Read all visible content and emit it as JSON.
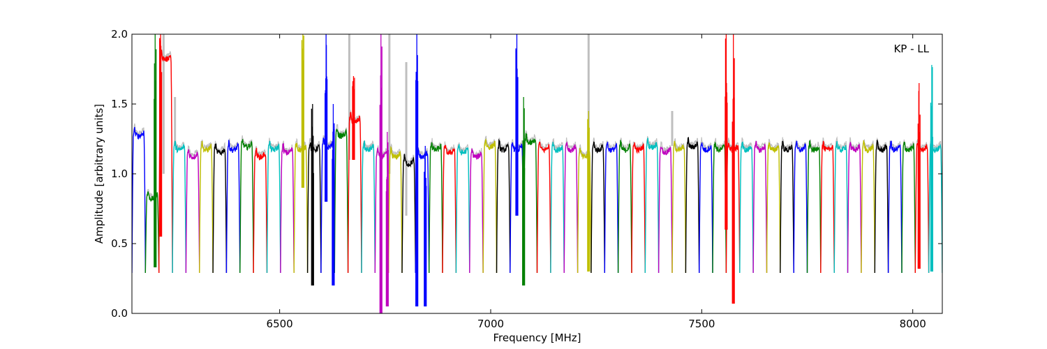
{
  "chart_data": {
    "type": "line",
    "title": "",
    "xlabel": "Frequency [MHz]",
    "ylabel": "Amplitude [arbitrary units]",
    "annotation": "KP - LL",
    "xlim": [
      6150,
      8070
    ],
    "ylim": [
      0.0,
      2.0
    ],
    "xticks": [
      6500,
      7000,
      7500,
      8000
    ],
    "yticks": [
      0.0,
      0.5,
      1.0,
      1.5,
      2.0
    ],
    "ytick_labels": [
      "0.0",
      "0.5",
      "1.0",
      "1.5",
      "2.0"
    ],
    "grid": false,
    "legend": "none",
    "channel_width_mhz": 32,
    "first_channel_start_mhz": 6150,
    "channel_colors": [
      "#0000ff",
      "#008000",
      "#ff0000",
      "#00bfbf",
      "#bf00bf",
      "#bfbf00",
      "#000000"
    ],
    "reference_color": "#bfbfbf",
    "channel_levels": [
      1.3,
      0.85,
      1.85,
      1.2,
      1.15,
      1.2,
      1.18,
      1.2,
      1.22,
      1.15,
      1.2,
      1.18,
      1.2,
      1.2,
      1.22,
      1.3,
      1.4,
      1.2,
      1.15,
      1.15,
      1.1,
      1.15,
      1.2,
      1.18,
      1.18,
      1.15,
      1.22,
      1.2,
      1.2,
      1.25,
      1.2,
      1.2,
      1.2,
      1.15,
      1.2,
      1.2,
      1.2,
      1.2,
      1.22,
      1.18,
      1.2,
      1.22,
      1.2,
      1.2,
      1.2,
      1.2,
      1.2,
      1.2,
      1.2,
      1.2,
      1.2,
      1.2,
      1.2,
      1.2,
      1.2,
      1.2,
      1.2,
      1.2,
      1.2,
      1.2,
      1.2,
      1.2,
      1.2,
      1.2,
      1.2,
      1.2,
      1.15,
      1.2,
      1.2,
      1.2,
      1.2,
      1.2,
      1.2,
      1.2,
      1.2,
      1.2,
      1.2,
      1.2,
      1.2,
      1.2,
      1.2,
      1.2,
      1.2,
      1.2,
      1.2,
      1.2,
      1.2,
      1.2,
      1.2,
      1.2,
      1.2,
      1.2,
      1.2,
      1.2,
      1.2,
      1.2,
      1.2,
      1.2,
      1.2,
      1.2
    ],
    "minimum_level": 0.29,
    "spikes": [
      {
        "x": 6205,
        "y_min": 0.33,
        "y_max": 2.0
      },
      {
        "x": 6218,
        "y_min": 0.55,
        "y_max": 2.0
      },
      {
        "x": 6555,
        "y_min": 0.9,
        "y_max": 2.0
      },
      {
        "x": 6578,
        "y_min": 0.2,
        "y_max": 1.5
      },
      {
        "x": 6610,
        "y_min": 0.8,
        "y_max": 2.0
      },
      {
        "x": 6627,
        "y_min": 0.2,
        "y_max": 1.5
      },
      {
        "x": 6675,
        "y_min": 1.1,
        "y_max": 1.7
      },
      {
        "x": 6740,
        "y_min": 0.0,
        "y_max": 2.0
      },
      {
        "x": 6755,
        "y_min": 0.05,
        "y_max": 1.3
      },
      {
        "x": 6825,
        "y_min": 0.05,
        "y_max": 2.0
      },
      {
        "x": 6845,
        "y_min": 0.05,
        "y_max": 1.2
      },
      {
        "x": 7062,
        "y_min": 0.7,
        "y_max": 2.0
      },
      {
        "x": 7078,
        "y_min": 0.2,
        "y_max": 1.55
      },
      {
        "x": 7232,
        "y_min": 0.3,
        "y_max": 1.45
      },
      {
        "x": 7558,
        "y_min": 0.6,
        "y_max": 2.0
      },
      {
        "x": 7575,
        "y_min": 0.07,
        "y_max": 2.0
      },
      {
        "x": 8015,
        "y_min": 0.32,
        "y_max": 1.65
      },
      {
        "x": 8045,
        "y_min": 0.3,
        "y_max": 1.78
      }
    ],
    "reference_spikes": [
      {
        "x": 6225,
        "y_min": 1.0,
        "y_max": 2.0
      },
      {
        "x": 6252,
        "y_min": 1.2,
        "y_max": 1.55
      },
      {
        "x": 6665,
        "y_min": 1.1,
        "y_max": 2.0
      },
      {
        "x": 6760,
        "y_min": 1.0,
        "y_max": 2.0
      },
      {
        "x": 6800,
        "y_min": 0.7,
        "y_max": 1.8
      },
      {
        "x": 7232,
        "y_min": 1.15,
        "y_max": 2.0
      },
      {
        "x": 7430,
        "y_min": 1.2,
        "y_max": 1.45
      }
    ]
  }
}
